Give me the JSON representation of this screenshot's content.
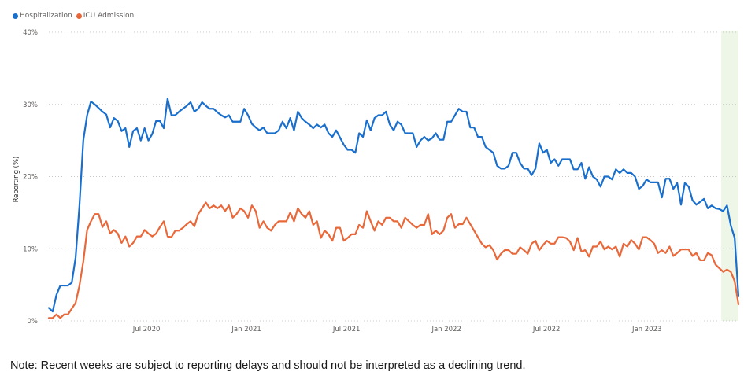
{
  "note": "Note: Recent weeks are subject to reporting delays and should not be interpreted as a declining trend.",
  "chart_data": {
    "type": "line",
    "title": "",
    "xlabel": "",
    "ylabel": "Reporting (%)",
    "ylim": [
      0,
      40
    ],
    "y_ticks": [
      0,
      10,
      20,
      30,
      40
    ],
    "y_tick_labels": [
      "0%",
      "10%",
      "20%",
      "30%",
      "40%"
    ],
    "x_unit": "week",
    "x_start_approx": "early Jan 2020",
    "x_ticks": [
      {
        "label": "Jul 2020",
        "week": 25.5
      },
      {
        "label": "Jan 2021",
        "week": 51.6
      },
      {
        "label": "Jul 2021",
        "week": 77.7
      },
      {
        "label": "Jan 2022",
        "week": 103.8
      },
      {
        "label": "Jul 2022",
        "week": 129.9
      },
      {
        "label": "Jan 2023",
        "week": 156.1
      }
    ],
    "grid": "horizontal-dotted",
    "legend": "top-left",
    "highlight_band": {
      "from_week": 175.5,
      "to_week": 180,
      "color": "#eef6e8",
      "meaning": "recent weeks subject to reporting delay"
    },
    "series": [
      {
        "name": "Hospitalization",
        "color": "#1a6fcc",
        "values": [
          1.8,
          1.3,
          3.6,
          4.9,
          4.9,
          4.9,
          5.3,
          8.8,
          16,
          25,
          28.5,
          30.4,
          30.0,
          29.5,
          29.0,
          28.6,
          26.8,
          28.1,
          27.7,
          26.3,
          26.7,
          24.1,
          26.3,
          26.7,
          25,
          26.7,
          25,
          25.9,
          27.7,
          27.7,
          26.7,
          30.8,
          28.5,
          28.5,
          29.0,
          29.4,
          29.8,
          30.3,
          29,
          29.4,
          30.3,
          29.8,
          29.4,
          29.4,
          28.9,
          28.5,
          28.2,
          28.5,
          27.6,
          27.6,
          27.6,
          29.4,
          28.5,
          27.3,
          26.8,
          26.4,
          26.8,
          26.0,
          26.0,
          26.0,
          26.4,
          27.6,
          26.7,
          28.1,
          26.4,
          29,
          28.1,
          27.6,
          27.2,
          26.7,
          27.2,
          26.8,
          27.2,
          26,
          25.5,
          26.4,
          25.4,
          24.4,
          23.7,
          23.7,
          23.3,
          26,
          25.5,
          27.8,
          26.4,
          28.1,
          28.5,
          28.5,
          29,
          27.2,
          26.4,
          27.6,
          27.2,
          26,
          26,
          26,
          24.1,
          25,
          25.5,
          25,
          25.3,
          26,
          25.1,
          25.1,
          27.6,
          27.6,
          28.5,
          29.4,
          29.0,
          29.0,
          26.8,
          26.8,
          25.5,
          25.5,
          24.1,
          23.7,
          23.3,
          21.5,
          21.1,
          21.1,
          21.5,
          23.3,
          23.3,
          21.9,
          21.1,
          21.1,
          20.2,
          21.1,
          24.6,
          23.3,
          23.7,
          21.9,
          22.4,
          21.5,
          22.4,
          22.4,
          22.4,
          21,
          21,
          21.9,
          19.7,
          21.3,
          20,
          19.6,
          18.6,
          20,
          20,
          19.6,
          21,
          20.5,
          21,
          20.5,
          20.5,
          20,
          18.3,
          18.7,
          19.6,
          19.2,
          19.2,
          19.2,
          17.1,
          19.7,
          19.7,
          18.3,
          19.1,
          16.1,
          19.1,
          18.6,
          16.7,
          16.1,
          16.5,
          16.9,
          15.6,
          16,
          15.6,
          15.5,
          15.2,
          16.0,
          13.2,
          11.5,
          3.4
        ]
      },
      {
        "name": "ICU Admission",
        "color": "#e8683a",
        "values": [
          0.4,
          0.4,
          0.9,
          0.4,
          0.9,
          0.9,
          1.7,
          2.5,
          4.9,
          8.2,
          12.6,
          13.8,
          14.8,
          14.8,
          13.0,
          13.8,
          12.1,
          12.6,
          12.1,
          10.8,
          11.7,
          10.3,
          10.8,
          11.7,
          11.7,
          12.6,
          12.1,
          11.7,
          12.1,
          13.0,
          13.8,
          11.7,
          11.6,
          12.5,
          12.5,
          12.9,
          13.4,
          13.8,
          13.1,
          14.8,
          15.6,
          16.4,
          15.6,
          16.0,
          15.6,
          16.0,
          15.2,
          16.0,
          14.3,
          14.8,
          15.6,
          15.2,
          14.3,
          16.0,
          15.2,
          12.9,
          13.8,
          12.9,
          12.5,
          13.3,
          13.8,
          13.8,
          13.8,
          15.0,
          13.8,
          15.6,
          14.8,
          14.3,
          15.2,
          13.3,
          13.8,
          11.5,
          12.5,
          12.0,
          11.1,
          12.9,
          12.9,
          11.1,
          11.5,
          12.0,
          12.0,
          13.3,
          12.9,
          15.2,
          13.8,
          12.5,
          13.8,
          13.3,
          14.3,
          14.3,
          13.8,
          13.8,
          12.9,
          14.3,
          13.8,
          13.3,
          12.9,
          13.3,
          13.3,
          14.8,
          12.0,
          12.5,
          12.0,
          12.5,
          14.3,
          14.8,
          12.9,
          13.4,
          13.4,
          14.3,
          13.4,
          12.5,
          11.6,
          10.7,
          10.2,
          10.5,
          9.8,
          8.5,
          9.3,
          9.8,
          9.8,
          9.3,
          9.3,
          10.2,
          9.8,
          9.3,
          10.7,
          11.1,
          9.8,
          10.5,
          11.1,
          10.7,
          10.7,
          11.6,
          11.6,
          11.5,
          11.0,
          9.8,
          11.5,
          9.6,
          9.8,
          8.9,
          10.3,
          10.3,
          11.0,
          9.9,
          10.3,
          9.9,
          10.3,
          8.9,
          10.7,
          10.3,
          11.2,
          10.7,
          9.9,
          11.6,
          11.6,
          11.2,
          10.7,
          9.4,
          9.8,
          9.4,
          10.3,
          9.0,
          9.4,
          9.9,
          9.9,
          9.9,
          9.0,
          9.4,
          8.4,
          8.4,
          9.4,
          9.1,
          7.8,
          7.3,
          6.8,
          7.1,
          6.8,
          5.5,
          2.3
        ]
      }
    ]
  }
}
